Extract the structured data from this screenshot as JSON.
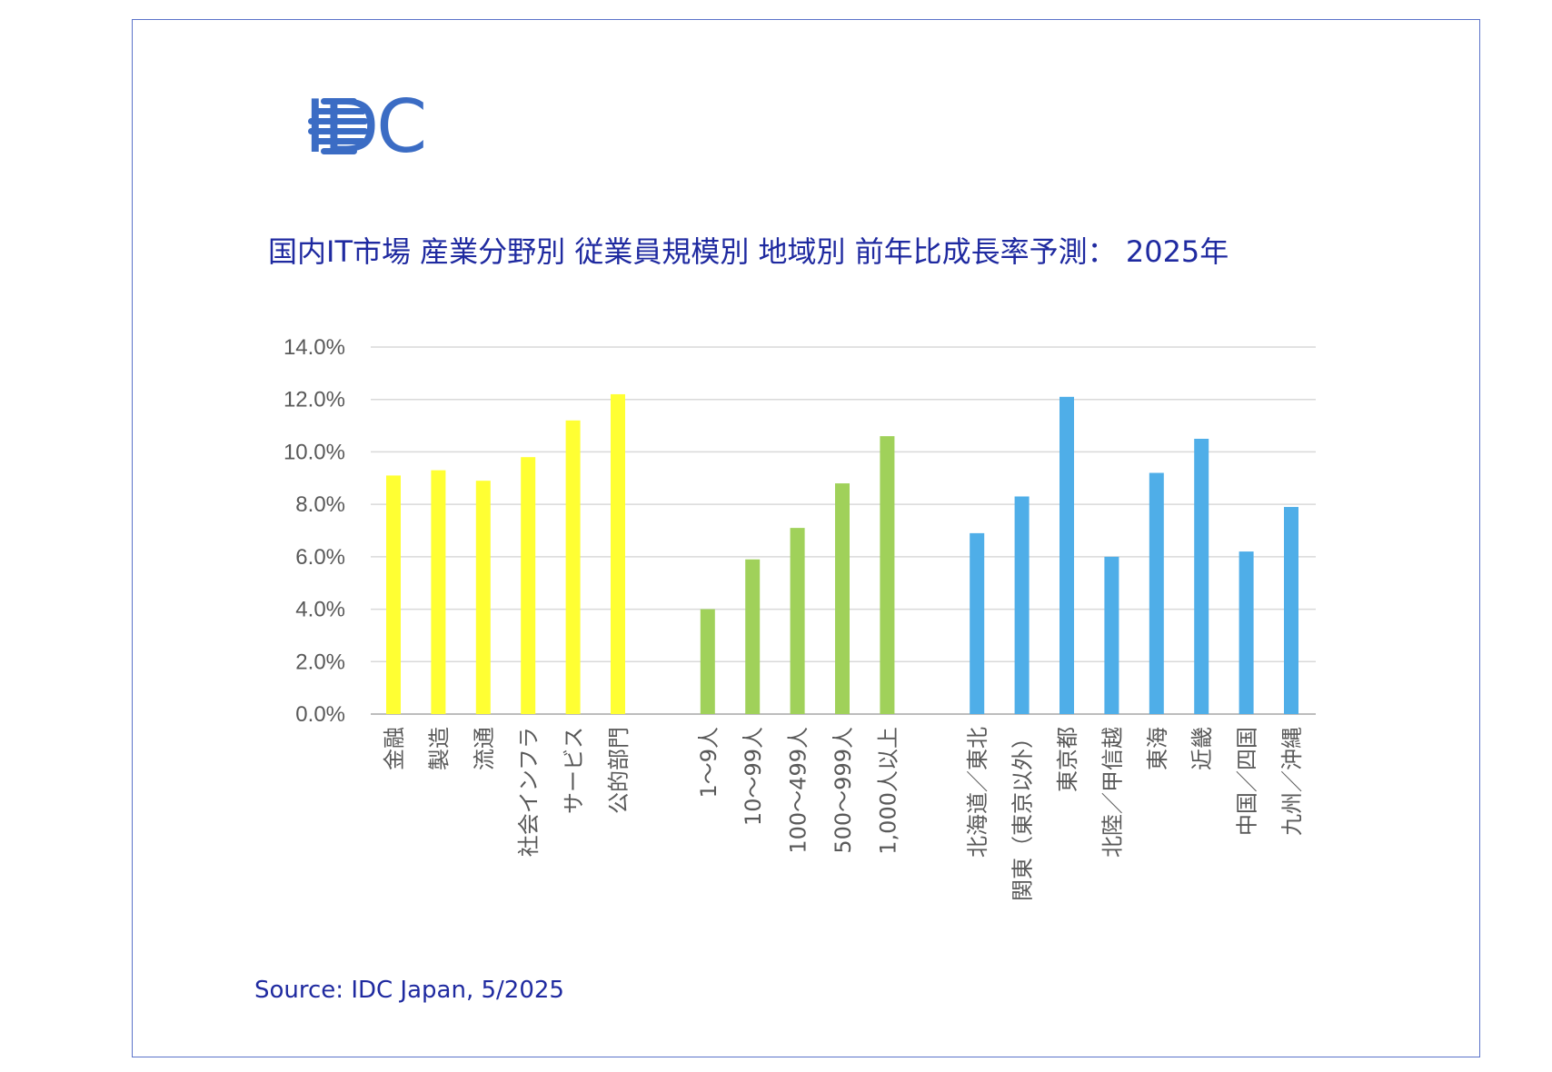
{
  "logo": {
    "text": "IDC",
    "color": "#3b6cc4"
  },
  "title": "国内IT市場 産業分野別 従業員規模別 地域別 前年比成長率予測： 2025年",
  "source": "Source: IDC Japan, 5/2025",
  "chart_data": {
    "type": "bar",
    "title": "国内IT市場 産業分野別 従業員規模別 地域別 前年比成長率予測： 2025年",
    "ylim": [
      0,
      14
    ],
    "y_ticks": [
      "0.0%",
      "2.0%",
      "4.0%",
      "6.0%",
      "8.0%",
      "10.0%",
      "12.0%",
      "14.0%"
    ],
    "grid": true,
    "groups": [
      {
        "color": "#ffff33",
        "categories": [
          "金融",
          "製造",
          "流通",
          "社会インフラ",
          "サービス",
          "公的部門"
        ],
        "values": [
          9.1,
          9.3,
          8.9,
          9.8,
          11.2,
          12.2
        ]
      },
      {
        "color": "#a0d15a",
        "categories": [
          "1～9人",
          "10～99人",
          "100～499人",
          "500～999人",
          "1,000人以上"
        ],
        "values": [
          4.0,
          5.9,
          7.1,
          8.8,
          10.6
        ]
      },
      {
        "color": "#4faee8",
        "categories": [
          "北海道／東北",
          "関東（東京以外）",
          "東京都",
          "北陸／甲信越",
          "東海",
          "近畿",
          "中国／四国",
          "九州／沖縄"
        ],
        "values": [
          6.9,
          8.3,
          12.1,
          6.0,
          9.2,
          10.5,
          6.2,
          7.9
        ]
      }
    ]
  }
}
